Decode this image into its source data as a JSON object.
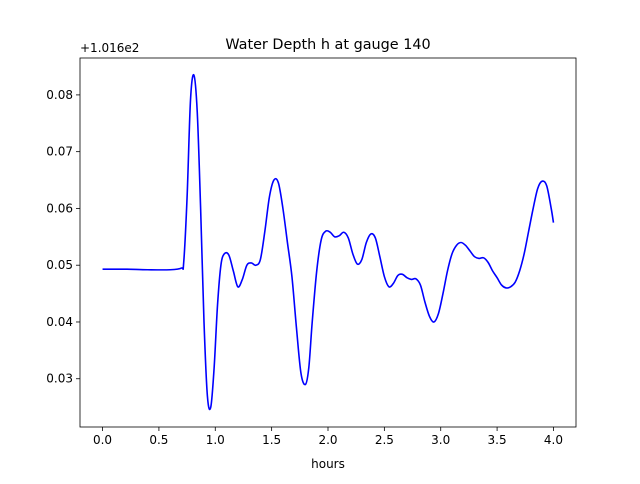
{
  "chart_data": {
    "type": "line",
    "title": "Water Depth h at gauge 140",
    "xlabel": "hours",
    "ylabel": "",
    "offset_label": "+1.016e2",
    "xlim": [
      -0.2,
      4.2
    ],
    "ylim": [
      0.0215,
      0.0865
    ],
    "xticks": [
      0.0,
      0.5,
      1.0,
      1.5,
      2.0,
      2.5,
      3.0,
      3.5,
      4.0
    ],
    "xtick_labels": [
      "0.0",
      "0.5",
      "1.0",
      "1.5",
      "2.0",
      "2.5",
      "3.0",
      "3.5",
      "4.0"
    ],
    "yticks": [
      0.03,
      0.04,
      0.05,
      0.06,
      0.07,
      0.08
    ],
    "ytick_labels": [
      "0.03",
      "0.04",
      "0.05",
      "0.06",
      "0.07",
      "0.08"
    ],
    "grid": false,
    "series": [
      {
        "color": "#0000ff",
        "x": [
          0.0,
          0.2,
          0.4,
          0.6,
          0.7,
          0.72,
          0.75,
          0.78,
          0.81,
          0.84,
          0.87,
          0.9,
          0.93,
          0.96,
          0.99,
          1.02,
          1.05,
          1.08,
          1.12,
          1.16,
          1.2,
          1.24,
          1.28,
          1.32,
          1.36,
          1.4,
          1.44,
          1.48,
          1.52,
          1.56,
          1.6,
          1.64,
          1.68,
          1.72,
          1.76,
          1.8,
          1.83,
          1.86,
          1.9,
          1.94,
          1.98,
          2.02,
          2.06,
          2.1,
          2.14,
          2.18,
          2.22,
          2.26,
          2.3,
          2.34,
          2.38,
          2.42,
          2.46,
          2.5,
          2.54,
          2.58,
          2.62,
          2.66,
          2.7,
          2.74,
          2.78,
          2.82,
          2.86,
          2.9,
          2.94,
          2.98,
          3.02,
          3.06,
          3.1,
          3.14,
          3.18,
          3.22,
          3.26,
          3.3,
          3.34,
          3.38,
          3.42,
          3.46,
          3.5,
          3.54,
          3.58,
          3.62,
          3.66,
          3.7,
          3.74,
          3.78,
          3.82,
          3.86,
          3.9,
          3.94,
          3.98,
          4.0
        ],
        "y": [
          0.0493,
          0.0493,
          0.0492,
          0.0492,
          0.0495,
          0.0505,
          0.062,
          0.079,
          0.0835,
          0.077,
          0.06,
          0.04,
          0.027,
          0.025,
          0.032,
          0.043,
          0.05,
          0.052,
          0.0518,
          0.049,
          0.0462,
          0.0475,
          0.05,
          0.0504,
          0.05,
          0.051,
          0.056,
          0.062,
          0.065,
          0.0645,
          0.06,
          0.054,
          0.048,
          0.039,
          0.031,
          0.029,
          0.032,
          0.04,
          0.049,
          0.0545,
          0.056,
          0.0558,
          0.055,
          0.0552,
          0.0558,
          0.0548,
          0.052,
          0.0502,
          0.051,
          0.054,
          0.0555,
          0.0548,
          0.0515,
          0.048,
          0.0462,
          0.0468,
          0.0482,
          0.0484,
          0.0478,
          0.0475,
          0.0476,
          0.0465,
          0.0435,
          0.041,
          0.04,
          0.0415,
          0.045,
          0.049,
          0.052,
          0.0535,
          0.054,
          0.0535,
          0.0525,
          0.0515,
          0.0512,
          0.0513,
          0.0505,
          0.049,
          0.0478,
          0.0465,
          0.046,
          0.0462,
          0.047,
          0.049,
          0.052,
          0.056,
          0.06,
          0.0635,
          0.0648,
          0.064,
          0.06,
          0.0575
        ]
      }
    ]
  }
}
